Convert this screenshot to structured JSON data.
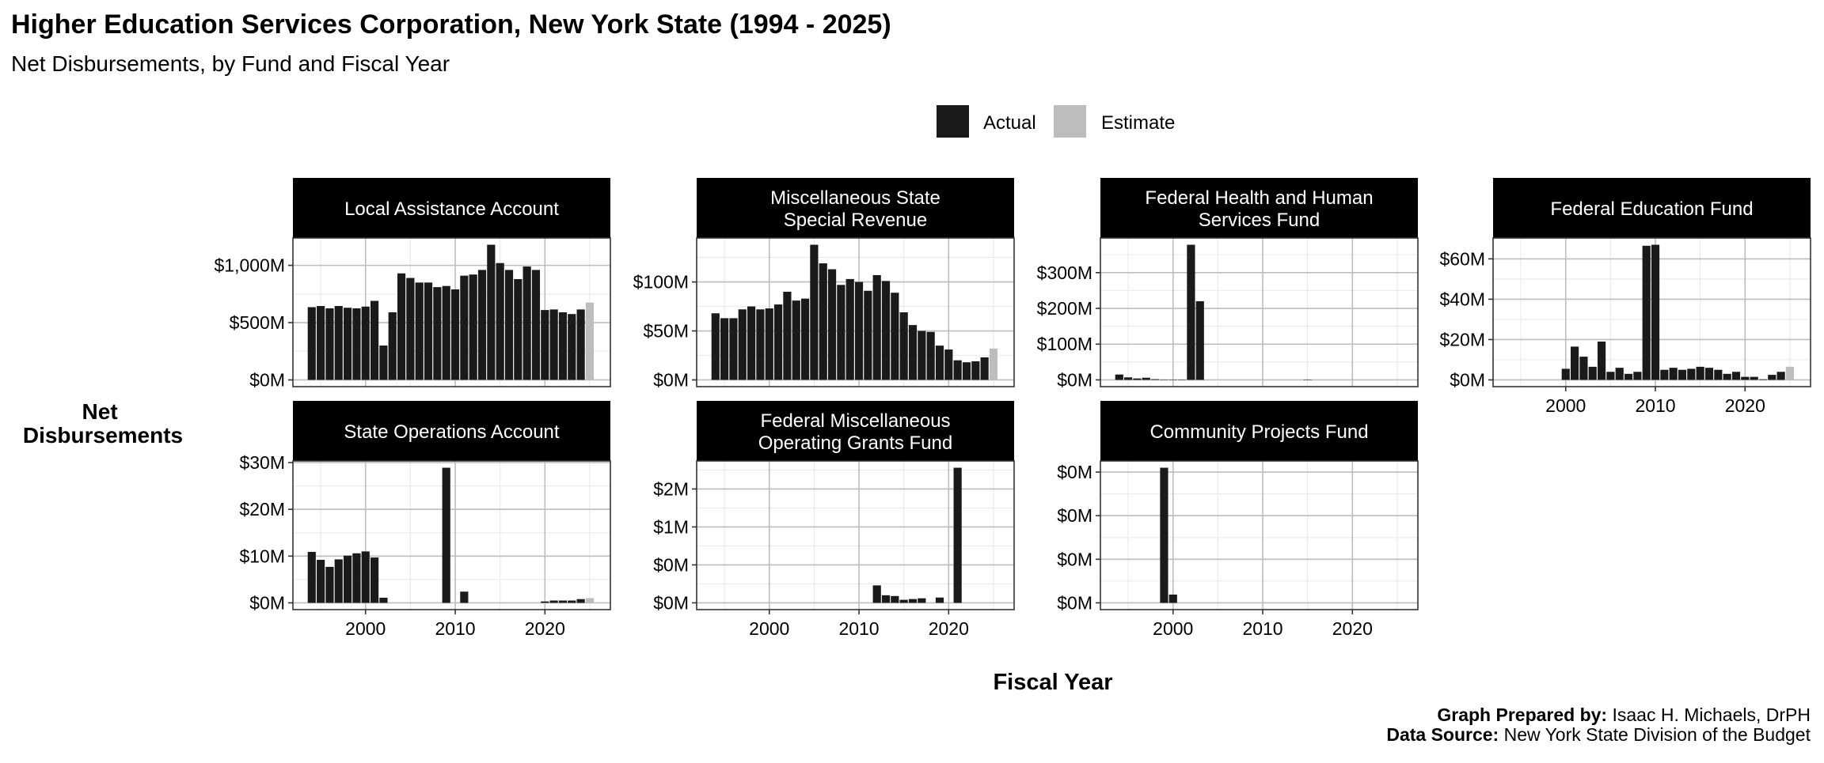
{
  "title": "Higher Education Services Corporation, New York State (1994 - 2025)",
  "subtitle": "Net Disbursements, by Fund and Fiscal Year",
  "legend": [
    {
      "label": "Actual",
      "color": "#1a1a1a"
    },
    {
      "label": "Estimate",
      "color": "#bdbdbd"
    }
  ],
  "caption": {
    "line1_bold": "Graph Prepared by:",
    "line1": " Isaac H. Michaels, DrPH",
    "line2_bold": "Data Source:",
    "line2": " New York State Division of the Budget"
  },
  "chart_data": {
    "type": "bar",
    "title": "Higher Education Services Corporation, New York State (1994 - 2025)",
    "xlabel": "Fiscal Year",
    "ylabel": "Net Disbursements",
    "units": "millions of dollars",
    "x": [
      1994,
      1995,
      1996,
      1997,
      1998,
      1999,
      2000,
      2001,
      2002,
      2003,
      2004,
      2005,
      2006,
      2007,
      2008,
      2009,
      2010,
      2011,
      2012,
      2013,
      2014,
      2015,
      2016,
      2017,
      2018,
      2019,
      2020,
      2021,
      2022,
      2023,
      2024,
      2025
    ],
    "estimate_years": [
      2025
    ],
    "x_ticks": [
      2000,
      2010,
      2020
    ],
    "x_tick_labels": [
      "2000",
      "2010",
      "2020"
    ],
    "legend_position": "top",
    "facets": [
      {
        "name": "Local Assistance Account",
        "values": [
          635,
          645,
          625,
          645,
          630,
          625,
          640,
          690,
          300,
          590,
          930,
          890,
          850,
          850,
          810,
          820,
          790,
          910,
          920,
          960,
          1180,
          1020,
          960,
          880,
          990,
          960,
          610,
          615,
          590,
          575,
          615,
          675
        ],
        "y_ticks": [
          0,
          500,
          1000
        ],
        "y_tick_labels": [
          "$0M",
          "$500M",
          "$1,000M"
        ]
      },
      {
        "name": "Miscellaneous State Special Revenue",
        "values": [
          68,
          63,
          63,
          72,
          75,
          72,
          73,
          77,
          90,
          81,
          83,
          138,
          119,
          113,
          97,
          103,
          100,
          91,
          107,
          101,
          89,
          69,
          56,
          50,
          49,
          35,
          31,
          20,
          18,
          19,
          23,
          32
        ],
        "y_ticks": [
          0,
          50,
          100
        ],
        "y_tick_labels": [
          "$0M",
          "$50M",
          "$100M"
        ]
      },
      {
        "name": "Federal Health and Human Services Fund",
        "values": [
          15,
          7,
          4,
          6,
          2,
          1,
          1,
          1,
          378,
          220,
          0,
          0,
          0,
          0,
          0,
          0,
          0,
          0,
          0,
          0,
          0,
          1,
          0,
          0,
          0,
          0,
          0,
          0,
          0,
          0,
          0,
          0
        ],
        "y_ticks": [
          0,
          100,
          200,
          300
        ],
        "y_tick_labels": [
          "$0M",
          "$100M",
          "$200M",
          "$300M"
        ]
      },
      {
        "name": "Federal Education Fund",
        "values": [
          0,
          0,
          0,
          0,
          0,
          0,
          5.5,
          16.5,
          11.5,
          6.5,
          19,
          4,
          6,
          3,
          4,
          66.5,
          67,
          5,
          6,
          5,
          5.5,
          6.5,
          6,
          5,
          3,
          4,
          1.5,
          1.5,
          0.3,
          2.5,
          4,
          6.5
        ],
        "y_ticks": [
          0,
          20,
          40,
          60
        ],
        "y_tick_labels": [
          "$0M",
          "$20M",
          "$40M",
          "$60M"
        ]
      },
      {
        "name": "State Operations Account",
        "values": [
          10.9,
          9.2,
          7.7,
          9.3,
          10.1,
          10.6,
          11.0,
          9.7,
          1.1,
          0,
          0,
          0,
          0,
          0,
          0,
          28.9,
          0,
          2.4,
          0,
          0,
          0,
          0,
          0,
          0,
          0,
          0,
          0.3,
          0.5,
          0.5,
          0.5,
          0.8,
          1.0
        ],
        "y_ticks": [
          0,
          10,
          20,
          30
        ],
        "y_tick_labels": [
          "$0M",
          "$10M",
          "$20M",
          "$30M"
        ]
      },
      {
        "name": "Federal Miscellaneous Operating Grants Fund",
        "values": [
          0,
          0,
          0,
          0,
          0,
          0,
          0,
          0,
          0,
          0,
          0,
          0,
          0,
          0,
          0,
          0,
          0,
          0,
          0.23,
          0.1,
          0.09,
          0.04,
          0.05,
          0.06,
          0,
          0.07,
          0,
          1.78,
          0,
          0,
          0,
          0
        ],
        "y_ticks": [
          0,
          0.5,
          1,
          1.5
        ],
        "y_tick_labels": [
          "$0M",
          "$0M",
          "$1M",
          "$2M"
        ]
      },
      {
        "name": "Community Projects Fund",
        "values": [
          0,
          0,
          0,
          0,
          0,
          0.31,
          0.019,
          0,
          0,
          0,
          0,
          0,
          0,
          0,
          0,
          0,
          0,
          0,
          0,
          0,
          0,
          0,
          0,
          0,
          0,
          0,
          0,
          0,
          0,
          0,
          0,
          0
        ],
        "y_ticks": [
          0,
          0.1,
          0.2,
          0.3
        ],
        "y_tick_labels": [
          "$0M",
          "$0M",
          "$0M",
          "$0M"
        ]
      }
    ],
    "facet_strip_labels": [
      [
        "Local Assistance Account"
      ],
      [
        "Miscellaneous State",
        "Special Revenue"
      ],
      [
        "Federal Health and Human",
        "Services Fund"
      ],
      [
        "Federal Education Fund"
      ],
      [
        "State Operations Account"
      ],
      [
        "Federal Miscellaneous",
        "Operating Grants Fund"
      ],
      [
        "Community Projects Fund"
      ]
    ],
    "ylabel_lines": [
      "Net",
      "Disbursements"
    ]
  }
}
